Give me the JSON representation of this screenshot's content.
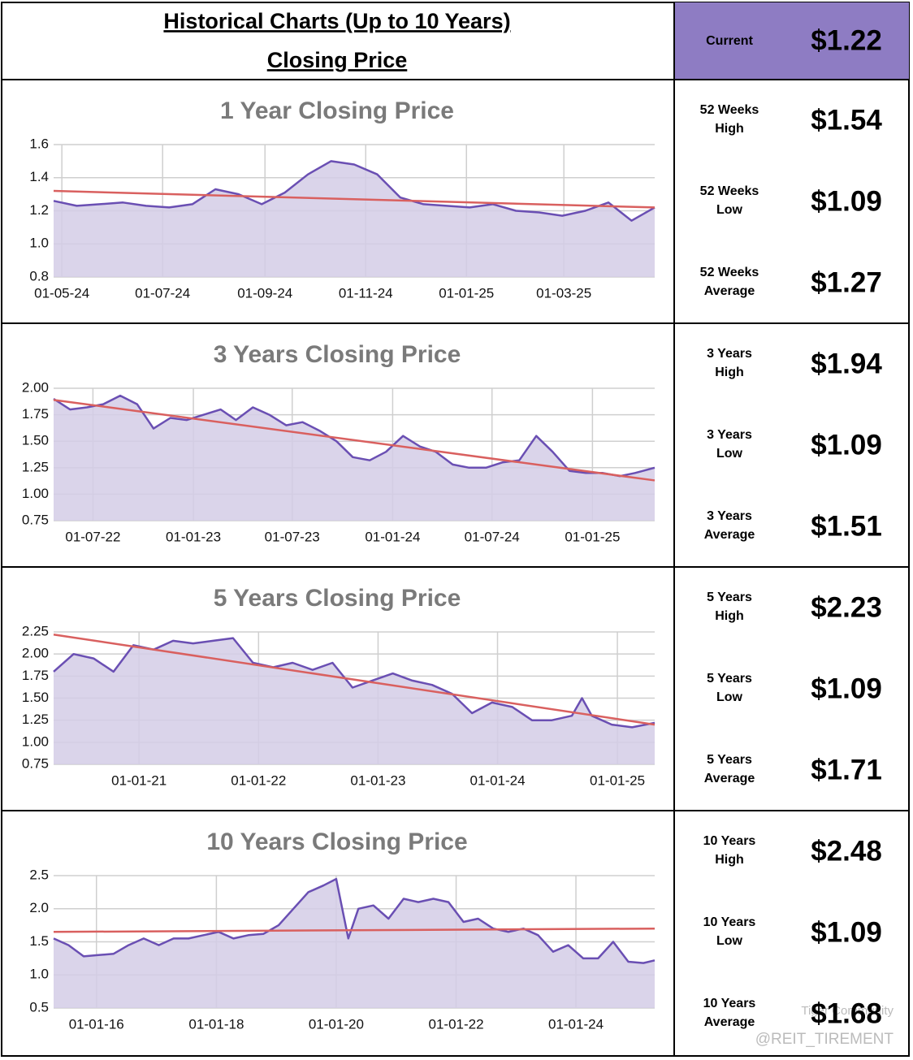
{
  "header": {
    "title": "Historical Charts (Up to 10 Years)",
    "subtitle": "Closing Price",
    "current_label": "Current",
    "current_value": "$1.22"
  },
  "chart_data": [
    {
      "type": "line",
      "title": "1 Year Closing Price",
      "grid": true,
      "fill": "#d4cce6",
      "xlim": [
        "26-04-24",
        "25-04-25"
      ],
      "xticks": [
        "01-05-24",
        "01-07-24",
        "01-09-24",
        "01-11-24",
        "01-01-25",
        "01-03-25"
      ],
      "ylim": [
        0.8,
        1.6
      ],
      "yticks": [
        0.8,
        {
          "value": 1.0,
          "label": "1.0"
        },
        1.2,
        1.4,
        1.6
      ],
      "x": [
        "26-04-24",
        "10-05-24",
        "24-05-24",
        "07-06-24",
        "21-06-24",
        "05-07-24",
        "19-07-24",
        "02-08-24",
        "16-08-24",
        "30-08-24",
        "13-09-24",
        "27-09-24",
        "11-10-24",
        "25-10-24",
        "08-11-24",
        "22-11-24",
        "06-12-24",
        "20-12-24",
        "03-01-25",
        "17-01-25",
        "31-01-25",
        "14-02-25",
        "28-02-25",
        "14-03-25",
        "28-03-25",
        "11-04-25",
        "25-04-25"
      ],
      "series": [
        {
          "color": "#6a4fb3",
          "values": [
            1.26,
            1.23,
            1.24,
            1.25,
            1.23,
            1.22,
            1.24,
            1.33,
            1.3,
            1.24,
            1.31,
            1.42,
            1.5,
            1.48,
            1.42,
            1.28,
            1.24,
            1.23,
            1.22,
            1.24,
            1.2,
            1.19,
            1.17,
            1.2,
            1.25,
            1.14,
            1.22
          ]
        }
      ],
      "trend": {
        "color": "#d9605f",
        "x": [
          "26-04-24",
          "25-04-25"
        ],
        "values": [
          1.32,
          1.22
        ]
      }
    },
    {
      "type": "line",
      "title": "3 Years Closing Price",
      "grid": true,
      "fill": "#d4cce6",
      "xlim": [
        "20-04-22",
        "25-04-25"
      ],
      "xticks": [
        "01-07-22",
        "01-01-23",
        "01-07-23",
        "01-01-24",
        "01-07-24",
        "01-01-25"
      ],
      "ylim": [
        0.75,
        2.0
      ],
      "yticks": [
        0.75,
        {
          "value": 1.0,
          "label": "1.00"
        },
        1.25,
        {
          "value": 1.5,
          "label": "1.50"
        },
        1.75,
        {
          "value": 2.0,
          "label": "2.00"
        }
      ],
      "x": [
        "20-04-22",
        "20-05-22",
        "20-06-22",
        "20-07-22",
        "20-08-22",
        "20-09-22",
        "20-10-22",
        "20-11-22",
        "20-12-22",
        "20-01-23",
        "20-02-23",
        "20-03-23",
        "20-04-23",
        "20-05-23",
        "20-06-23",
        "20-07-23",
        "20-08-23",
        "20-09-23",
        "20-10-23",
        "20-11-23",
        "20-12-23",
        "20-01-24",
        "20-02-24",
        "20-03-24",
        "20-04-24",
        "20-05-24",
        "20-06-24",
        "20-07-24",
        "20-08-24",
        "20-09-24",
        "20-10-24",
        "20-11-24",
        "20-12-24",
        "20-01-25",
        "20-02-25",
        "20-03-25",
        "25-04-25"
      ],
      "series": [
        {
          "color": "#6a4fb3",
          "values": [
            1.9,
            1.8,
            1.82,
            1.85,
            1.93,
            1.85,
            1.62,
            1.72,
            1.7,
            1.75,
            1.8,
            1.7,
            1.82,
            1.75,
            1.65,
            1.68,
            1.6,
            1.5,
            1.35,
            1.32,
            1.4,
            1.55,
            1.45,
            1.4,
            1.28,
            1.25,
            1.25,
            1.3,
            1.32,
            1.55,
            1.4,
            1.22,
            1.2,
            1.2,
            1.17,
            1.2,
            1.25
          ]
        }
      ],
      "trend": {
        "color": "#d9605f",
        "x": [
          "20-04-22",
          "25-04-25"
        ],
        "values": [
          1.89,
          1.13
        ]
      }
    },
    {
      "type": "line",
      "title": "5 Years Closing Price",
      "grid": true,
      "fill": "#d4cce6",
      "xlim": [
        "15-04-20",
        "25-04-25"
      ],
      "xticks": [
        "01-01-21",
        "01-01-22",
        "01-01-23",
        "01-01-24",
        "01-01-25"
      ],
      "ylim": [
        0.75,
        2.25
      ],
      "yticks": [
        0.75,
        {
          "value": 1.0,
          "label": "1.00"
        },
        1.25,
        {
          "value": 1.5,
          "label": "1.50"
        },
        1.75,
        {
          "value": 2.0,
          "label": "2.00"
        },
        2.25
      ],
      "x": [
        "15-04-20",
        "15-06-20",
        "15-08-20",
        "15-10-20",
        "15-12-20",
        "15-02-21",
        "15-04-21",
        "15-06-21",
        "15-08-21",
        "15-10-21",
        "15-12-21",
        "15-02-22",
        "15-04-22",
        "15-06-22",
        "15-08-22",
        "15-10-22",
        "15-12-22",
        "15-02-23",
        "15-04-23",
        "15-06-23",
        "15-08-23",
        "15-10-23",
        "15-12-23",
        "15-02-24",
        "15-04-24",
        "15-06-24",
        "15-08-24",
        "15-09-24",
        "15-10-24",
        "15-12-24",
        "15-02-25",
        "25-04-25"
      ],
      "series": [
        {
          "color": "#6a4fb3",
          "values": [
            1.8,
            2.0,
            1.95,
            1.8,
            2.1,
            2.05,
            2.15,
            2.12,
            2.15,
            2.18,
            1.9,
            1.85,
            1.9,
            1.82,
            1.9,
            1.62,
            1.7,
            1.78,
            1.7,
            1.65,
            1.55,
            1.33,
            1.45,
            1.4,
            1.25,
            1.25,
            1.3,
            1.5,
            1.3,
            1.2,
            1.17,
            1.22
          ]
        }
      ],
      "trend": {
        "color": "#d9605f",
        "x": [
          "15-04-20",
          "25-04-25"
        ],
        "values": [
          2.22,
          1.2
        ]
      }
    },
    {
      "type": "line",
      "title": "10 Years Closing Price",
      "grid": true,
      "fill": "#d4cce6",
      "xlim": [
        "15-04-15",
        "25-04-25"
      ],
      "xticks": [
        "01-01-16",
        "01-01-18",
        "01-01-20",
        "01-01-22",
        "01-01-24"
      ],
      "ylim": [
        0.5,
        2.5
      ],
      "yticks": [
        0.5,
        {
          "value": 1.0,
          "label": "1.0"
        },
        1.5,
        {
          "value": 2.0,
          "label": "2.0"
        },
        2.5
      ],
      "x": [
        "15-04-15",
        "15-07-15",
        "15-10-15",
        "15-01-16",
        "15-04-16",
        "15-07-16",
        "15-10-16",
        "15-01-17",
        "15-04-17",
        "15-07-17",
        "15-10-17",
        "15-01-18",
        "15-04-18",
        "15-07-18",
        "15-10-18",
        "15-01-19",
        "15-04-19",
        "15-07-19",
        "15-10-19",
        "01-01-20",
        "15-03-20",
        "15-05-20",
        "15-08-20",
        "15-11-20",
        "15-02-21",
        "15-05-21",
        "15-08-21",
        "15-11-21",
        "15-02-22",
        "15-05-22",
        "15-08-22",
        "15-11-22",
        "15-02-23",
        "15-05-23",
        "15-08-23",
        "15-11-23",
        "15-02-24",
        "15-05-24",
        "15-08-24",
        "15-11-24",
        "15-02-25",
        "25-04-25"
      ],
      "series": [
        {
          "color": "#6a4fb3",
          "values": [
            1.55,
            1.45,
            1.28,
            1.3,
            1.32,
            1.45,
            1.55,
            1.45,
            1.55,
            1.55,
            1.6,
            1.65,
            1.55,
            1.6,
            1.62,
            1.75,
            2.0,
            2.25,
            2.35,
            2.45,
            1.55,
            2.0,
            2.05,
            1.85,
            2.15,
            2.1,
            2.15,
            2.1,
            1.8,
            1.85,
            1.7,
            1.65,
            1.7,
            1.6,
            1.35,
            1.45,
            1.25,
            1.25,
            1.5,
            1.2,
            1.18,
            1.22
          ]
        }
      ],
      "trend": {
        "color": "#d9605f",
        "x": [
          "15-04-15",
          "25-04-25"
        ],
        "values": [
          1.65,
          1.7
        ]
      }
    }
  ],
  "stats": [
    [
      {
        "label": "52 Weeks High",
        "value": "$1.54"
      },
      {
        "label": "52 Weeks Low",
        "value": "$1.09"
      },
      {
        "label": "52 Weeks Average",
        "value": "$1.27"
      }
    ],
    [
      {
        "label": "3 Years High",
        "value": "$1.94"
      },
      {
        "label": "3 Years Low",
        "value": "$1.09"
      },
      {
        "label": "3 Years Average",
        "value": "$1.51"
      }
    ],
    [
      {
        "label": "5 Years High",
        "value": "$2.23"
      },
      {
        "label": "5 Years Low",
        "value": "$1.09"
      },
      {
        "label": "5 Years Average",
        "value": "$1.71"
      }
    ],
    [
      {
        "label": "10 Years High",
        "value": "$2.48"
      },
      {
        "label": "10 Years Low",
        "value": "$1.09"
      },
      {
        "label": "10 Years Average",
        "value": "$1.68"
      }
    ]
  ],
  "watermark": {
    "brand": "Tiger Community",
    "handle": "@REIT_TIREMENT"
  }
}
